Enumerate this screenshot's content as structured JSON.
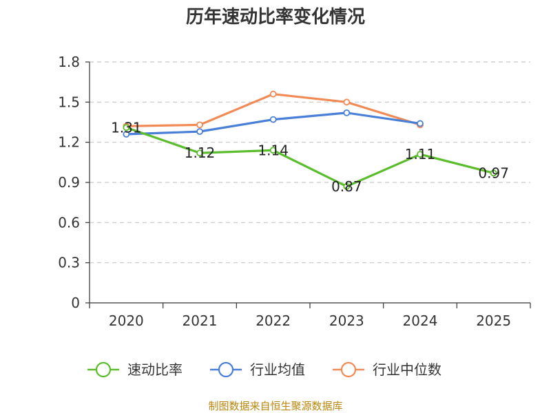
{
  "chart_data": {
    "type": "line",
    "title": "历年速动比率变化情况",
    "categories": [
      "2020",
      "2021",
      "2022",
      "2023",
      "2024",
      "2025"
    ],
    "yticks": [
      "0",
      "0.3",
      "0.6",
      "0.9",
      "1.2",
      "1.5",
      "1.8"
    ],
    "ylim": [
      0,
      1.8
    ],
    "grid": true,
    "legend_position": "bottom",
    "series": [
      {
        "name": "速动比率",
        "color": "#5bbd2b",
        "values": [
          1.31,
          1.12,
          1.14,
          0.87,
          1.11,
          0.97
        ],
        "labels": [
          "1.31",
          "1.12",
          "1.14",
          "0.87",
          "1.11",
          "0.97"
        ]
      },
      {
        "name": "行业均值",
        "color": "#4a7fd8",
        "values": [
          1.26,
          1.28,
          1.37,
          1.42,
          1.34,
          null
        ]
      },
      {
        "name": "行业中位数",
        "color": "#f28a55",
        "values": [
          1.32,
          1.33,
          1.56,
          1.5,
          1.33,
          null
        ]
      }
    ],
    "source": "制图数据来自恒生聚源数据库"
  }
}
